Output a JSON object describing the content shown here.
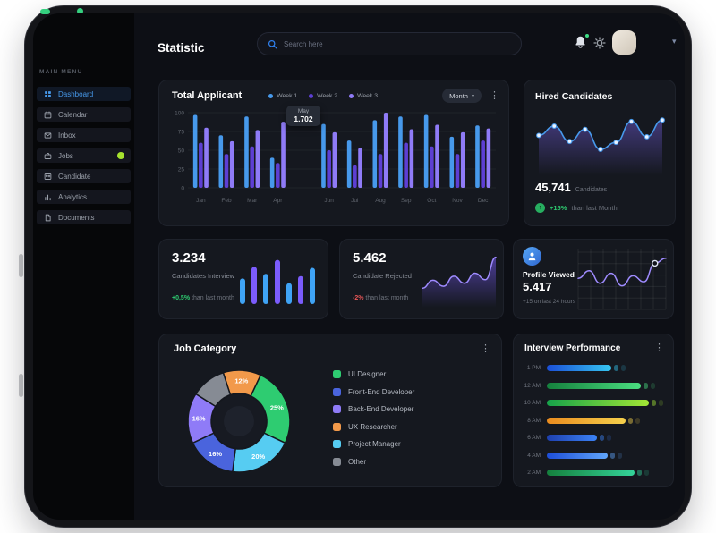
{
  "header": {
    "title": "Statistic",
    "search_placeholder": "Search here"
  },
  "sidebar": {
    "menu_label": "MAIN MENU",
    "items": [
      {
        "label": "Dashboard",
        "active": true
      },
      {
        "label": "Calendar"
      },
      {
        "label": "Inbox"
      },
      {
        "label": "Jobs",
        "badge": true
      },
      {
        "label": "Candidate"
      },
      {
        "label": "Analytics"
      },
      {
        "label": "Documents"
      }
    ]
  },
  "cards": {
    "total_applicant": {
      "title": "Total Applicant",
      "period": "Month",
      "tooltip_label": "May",
      "tooltip_value": "1.702"
    },
    "hired_candidates": {
      "title": "Hired Candidates",
      "value": "45,741",
      "unit": "Candidates",
      "delta": "+15%",
      "delta_suffix": "than last Month"
    },
    "candidates_interview": {
      "value": "3.234",
      "label": "Candidates Interview",
      "delta": "+0,5%",
      "delta_suffix": "than last month"
    },
    "candidate_rejected": {
      "value": "5.462",
      "label": "Candidate Rejected",
      "delta": "-2%",
      "delta_suffix": "than last month"
    },
    "profile_viewed": {
      "title": "Profile Viewed",
      "value": "5.417",
      "note": "+15 on last 24 hours"
    },
    "job_category": {
      "title": "Job Category"
    },
    "interview_performance": {
      "title": "Interview Performance"
    }
  },
  "icons": {
    "gear": "⚙",
    "kebab": "⋮",
    "chevron_down": "▾",
    "arrow_up": "↑"
  },
  "colors": {
    "accent_blue": "#4799eb",
    "accent_purple": "#7b5cfc",
    "green": "#2ecc71",
    "red": "#eb5757",
    "badge_green": "#a6e22e"
  },
  "chart_data": [
    {
      "id": "total-applicant",
      "type": "bar",
      "title": "Total Applicant",
      "categories": [
        "Jan",
        "Feb",
        "Mar",
        "Apr",
        "May",
        "Jun",
        "Jul",
        "Aug",
        "Sep",
        "Oct",
        "Nov",
        "Dec"
      ],
      "series": [
        {
          "name": "Week 1",
          "color": "#4799eb",
          "values": [
            97,
            70,
            95,
            40,
            null,
            85,
            63,
            90,
            95,
            97,
            68,
            83
          ]
        },
        {
          "name": "Week 2",
          "color": "#5d3fd3",
          "values": [
            60,
            45,
            55,
            33,
            null,
            50,
            30,
            45,
            60,
            55,
            45,
            63
          ]
        },
        {
          "name": "Week 3",
          "color": "#8f7bf7",
          "values": [
            80,
            62,
            77,
            88,
            null,
            74,
            53,
            100,
            78,
            84,
            74,
            79
          ]
        }
      ],
      "ylim": [
        0,
        100
      ],
      "yticks": [
        0,
        25,
        50,
        75,
        100
      ],
      "grid": true,
      "legend_position": "top",
      "tooltip": {
        "label": "May",
        "value": "1.702"
      },
      "period": "Month"
    },
    {
      "id": "hired-candidates",
      "type": "line",
      "title": "Hired Candidates",
      "values": [
        55,
        75,
        42,
        68,
        25,
        40,
        85,
        52,
        88
      ],
      "color": "#4799eb",
      "fill": "#6f5bd6",
      "markers": true
    },
    {
      "id": "candidates-interview",
      "type": "bar",
      "title": "Candidates Interview",
      "values": [
        55,
        80,
        65,
        95,
        45,
        60,
        78
      ],
      "colors": [
        "#3fa3f5",
        "#7b5cfc"
      ]
    },
    {
      "id": "candidate-rejected",
      "type": "area",
      "title": "Candidate Rejected",
      "values": [
        28,
        44,
        32,
        52,
        38,
        58,
        45,
        90
      ],
      "color": "#9f8bff",
      "fill": "#7b5cfc"
    },
    {
      "id": "profile-viewed",
      "type": "line",
      "title": "Profile Viewed",
      "values": [
        55,
        70,
        45,
        65,
        40,
        60,
        48,
        85,
        95
      ],
      "color": "#9f8bff",
      "grid": true,
      "marker_index": 7
    },
    {
      "id": "job-category",
      "type": "pie",
      "title": "Job Category",
      "slices": [
        {
          "label": "UI Designer",
          "value": 25,
          "color": "#2ecc71"
        },
        {
          "label": "Front-End Developer",
          "value": 16,
          "color": "#4a64dd"
        },
        {
          "label": "Back-End Developer",
          "value": 16,
          "color": "#8f7bf7"
        },
        {
          "label": "UX Researcher",
          "value": 12,
          "color": "#f2994a"
        },
        {
          "label": "Project Manager",
          "value": 20,
          "color": "#56ccf2"
        },
        {
          "label": "Other",
          "value": 11,
          "color": "#868b94",
          "show_label": false
        }
      ],
      "donut_order": [
        3,
        0,
        4,
        1,
        2,
        5
      ],
      "start_angle": -18
    },
    {
      "id": "interview-performance",
      "type": "bar",
      "orientation": "horizontal",
      "title": "Interview Performance",
      "categories": [
        "1 PM",
        "12 AM",
        "10 AM",
        "8 AM",
        "6 AM",
        "4 AM",
        "2 AM"
      ],
      "values": [
        55,
        80,
        87,
        67,
        43,
        52,
        75
      ],
      "colors": [
        [
          "#1b4fd8",
          "#36c6f0"
        ],
        [
          "#15803d",
          "#4ade80"
        ],
        [
          "#16a34a",
          "#a3e635"
        ],
        [
          "#ea8c1f",
          "#f5d04c"
        ],
        [
          "#1e40af",
          "#3b82f6"
        ],
        [
          "#1d4ed8",
          "#60a5fa"
        ],
        [
          "#15803d",
          "#34d399"
        ]
      ]
    }
  ]
}
